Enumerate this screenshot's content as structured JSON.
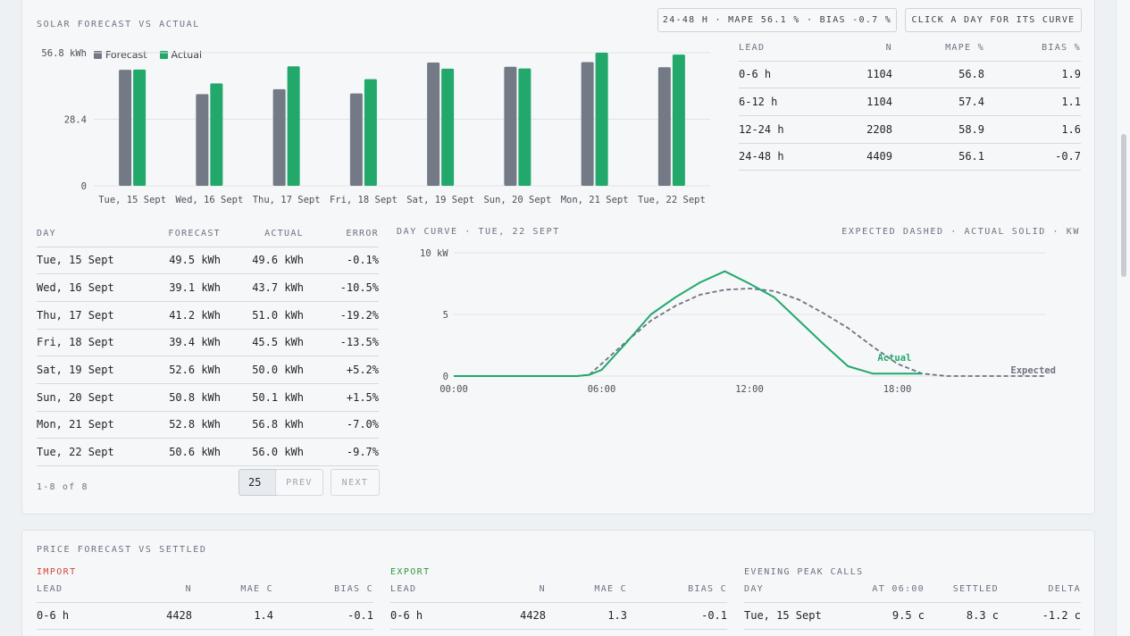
{
  "solar": {
    "title": "SOLAR FORECAST VS ACTUAL",
    "summary_pill": "24-48 H · MAPE 56.1 % · BIAS -0.7 %",
    "hint_pill": "CLICK A DAY FOR ITS CURVE",
    "legend": {
      "forecast": "Forecast",
      "actual": "Actual"
    },
    "colors": {
      "forecast": "#737985",
      "actual": "#22a86b",
      "negative": "#1a8b3d"
    },
    "lead_table": {
      "headers": [
        "LEAD",
        "N",
        "MAPE %",
        "BIAS %"
      ],
      "rows": [
        [
          "0-6 h",
          "1104",
          "56.8",
          "1.9"
        ],
        [
          "6-12 h",
          "1104",
          "57.4",
          "1.1"
        ],
        [
          "12-24 h",
          "2208",
          "58.9",
          "1.6"
        ],
        [
          "24-48 h",
          "4409",
          "56.1",
          "-0.7"
        ]
      ]
    },
    "day_table": {
      "headers": [
        "DAY",
        "FORECAST",
        "ACTUAL",
        "ERROR"
      ],
      "rows": [
        [
          "Tue, 15 Sept",
          "49.5 kWh",
          "49.6 kWh",
          "-0.1%"
        ],
        [
          "Wed, 16 Sept",
          "39.1 kWh",
          "43.7 kWh",
          "-10.5%"
        ],
        [
          "Thu, 17 Sept",
          "41.2 kWh",
          "51.0 kWh",
          "-19.2%"
        ],
        [
          "Fri, 18 Sept",
          "39.4 kWh",
          "45.5 kWh",
          "-13.5%"
        ],
        [
          "Sat, 19 Sept",
          "52.6 kWh",
          "50.0 kWh",
          "+5.2%"
        ],
        [
          "Sun, 20 Sept",
          "50.8 kWh",
          "50.1 kWh",
          "+1.5%"
        ],
        [
          "Mon, 21 Sept",
          "52.8 kWh",
          "56.8 kWh",
          "-7.0%"
        ],
        [
          "Tue, 22 Sept",
          "50.6 kWh",
          "56.0 kWh",
          "-9.7%"
        ]
      ]
    },
    "pager": {
      "range": "1-8 of 8",
      "page_size": "25",
      "prev": "PREV",
      "next": "NEXT"
    },
    "curve": {
      "title": "DAY CURVE · TUE, 22 SEPT",
      "note": "EXPECTED DASHED · ACTUAL SOLID · KW",
      "actual_label": "Actual",
      "expected_label": "Expected"
    }
  },
  "price": {
    "title": "PRICE FORECAST VS SETTLED",
    "import": {
      "label": "IMPORT",
      "color": "#d9443b",
      "headers": [
        "LEAD",
        "N",
        "MAE C",
        "BIAS C"
      ],
      "rows": [
        [
          "0-6 h",
          "4428",
          "1.4",
          "-0.1"
        ]
      ]
    },
    "export": {
      "label": "EXPORT",
      "color": "#2f9a3a",
      "headers": [
        "LEAD",
        "N",
        "MAE C",
        "BIAS C"
      ],
      "rows": [
        [
          "0-6 h",
          "4428",
          "1.3",
          "-0.1"
        ]
      ]
    },
    "peak": {
      "label": "EVENING PEAK CALLS",
      "headers": [
        "DAY",
        "AT 06:00",
        "SETTLED",
        "DELTA"
      ],
      "rows": [
        [
          "Tue, 15 Sept",
          "9.5 c",
          "8.3 c",
          "-1.2 c"
        ]
      ]
    }
  },
  "chart_data": [
    {
      "type": "bar",
      "ylabel": "",
      "ylim": [
        0,
        56.8
      ],
      "yticks": [
        "0",
        "28.4",
        "56.8 kWh"
      ],
      "categories": [
        "Tue, 15 Sept",
        "Wed, 16 Sept",
        "Thu, 17 Sept",
        "Fri, 18 Sept",
        "Sat, 19 Sept",
        "Sun, 20 Sept",
        "Mon, 21 Sept",
        "Tue, 22 Sept"
      ],
      "series": [
        {
          "name": "Forecast",
          "values": [
            49.5,
            39.1,
            41.2,
            39.4,
            52.6,
            50.8,
            52.8,
            50.6
          ]
        },
        {
          "name": "Actual",
          "values": [
            49.6,
            43.7,
            51.0,
            45.5,
            50.0,
            50.1,
            56.8,
            56.0
          ]
        }
      ],
      "grid": true,
      "legend": "top-left"
    },
    {
      "type": "line",
      "x_unit": "hour",
      "xticks": [
        "00:00",
        "06:00",
        "12:00",
        "18:00"
      ],
      "ylim": [
        0,
        10
      ],
      "yticks": [
        "0",
        "5",
        "10 kW"
      ],
      "series": [
        {
          "name": "Expected",
          "style": "dashed",
          "x": [
            0,
            5,
            5.5,
            6,
            7,
            8,
            9,
            10,
            11,
            12,
            13,
            14,
            15,
            16,
            17,
            18,
            19,
            20,
            21,
            22,
            23,
            24
          ],
          "y": [
            0,
            0,
            0.1,
            1.0,
            2.8,
            4.5,
            5.7,
            6.6,
            7.0,
            7.1,
            6.9,
            6.2,
            5.1,
            3.9,
            2.4,
            1.0,
            0.2,
            0,
            0,
            0,
            0,
            0
          ]
        },
        {
          "name": "Actual",
          "style": "solid",
          "x": [
            0,
            5,
            5.5,
            6,
            7,
            8,
            9,
            10,
            11,
            12,
            13,
            14,
            15,
            16,
            17,
            18,
            19
          ],
          "y": [
            0,
            0,
            0.1,
            0.5,
            2.7,
            5.0,
            6.4,
            7.6,
            8.5,
            7.5,
            6.4,
            4.5,
            2.6,
            0.8,
            0.2,
            0.2,
            0.2
          ]
        }
      ],
      "grid": true
    }
  ]
}
